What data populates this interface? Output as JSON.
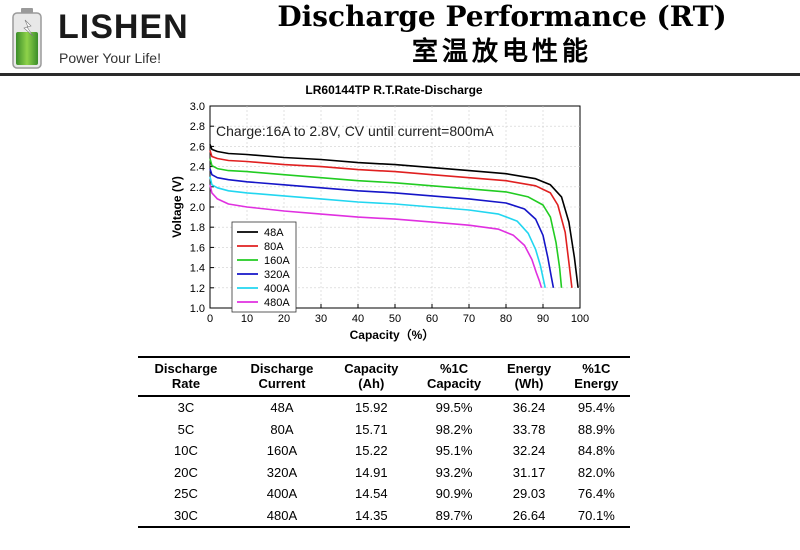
{
  "header": {
    "brand": "LISHEN",
    "slogan": "Power Your Life!",
    "title": "Discharge Performance (RT)",
    "subtitle": "室温放电性能"
  },
  "colors": {
    "48A": "#000000",
    "80A": "#e02020",
    "160A": "#22cc22",
    "320A": "#1515c8",
    "400A": "#22d6f0",
    "480A": "#e030e0"
  },
  "chart_data": {
    "type": "line",
    "title": "LR60144TP R.T.Rate-Discharge",
    "xlabel": "Capacity（%）",
    "ylabel": "Voltage (V)",
    "xlim": [
      0,
      100
    ],
    "ylim": [
      1.0,
      3.0
    ],
    "xticks": [
      "0",
      "10",
      "20",
      "30",
      "40",
      "50",
      "60",
      "70",
      "80",
      "90",
      "100"
    ],
    "yticks": [
      "1.0",
      "1.2",
      "1.4",
      "1.6",
      "1.8",
      "2.0",
      "2.2",
      "2.4",
      "2.6",
      "2.8",
      "3.0"
    ],
    "annotation": "Charge:16A to 2.8V, CV until current=800mA",
    "legend_position": "lower-left",
    "series": [
      {
        "name": "48A",
        "color": "#000000",
        "x": [
          0,
          0.5,
          2,
          5,
          10,
          20,
          30,
          40,
          50,
          60,
          70,
          80,
          88,
          92,
          95,
          97,
          98.5,
          99.5
        ],
        "y": [
          2.62,
          2.57,
          2.55,
          2.53,
          2.52,
          2.49,
          2.47,
          2.44,
          2.42,
          2.39,
          2.36,
          2.33,
          2.28,
          2.22,
          2.1,
          1.85,
          1.5,
          1.2
        ]
      },
      {
        "name": "80A",
        "color": "#e02020",
        "x": [
          0,
          0.5,
          2,
          5,
          10,
          20,
          30,
          40,
          50,
          60,
          70,
          80,
          88,
          92,
          94,
          96,
          97,
          97.8
        ],
        "y": [
          2.56,
          2.5,
          2.48,
          2.46,
          2.45,
          2.42,
          2.4,
          2.37,
          2.35,
          2.32,
          2.29,
          2.26,
          2.21,
          2.14,
          2.02,
          1.75,
          1.45,
          1.2
        ]
      },
      {
        "name": "160A",
        "color": "#22cc22",
        "x": [
          0,
          0.5,
          2,
          5,
          10,
          20,
          30,
          40,
          50,
          60,
          70,
          80,
          86,
          90,
          92,
          93.5,
          94.5,
          95
        ],
        "y": [
          2.48,
          2.41,
          2.38,
          2.36,
          2.35,
          2.32,
          2.29,
          2.26,
          2.24,
          2.21,
          2.18,
          2.15,
          2.1,
          2.02,
          1.9,
          1.65,
          1.4,
          1.2
        ]
      },
      {
        "name": "320A",
        "color": "#1515c8",
        "x": [
          0,
          0.5,
          2,
          5,
          10,
          20,
          30,
          40,
          50,
          60,
          70,
          80,
          85,
          88,
          90,
          91.3,
          92.2,
          92.8
        ],
        "y": [
          2.38,
          2.32,
          2.29,
          2.27,
          2.25,
          2.22,
          2.19,
          2.16,
          2.14,
          2.11,
          2.08,
          2.04,
          1.98,
          1.88,
          1.72,
          1.5,
          1.32,
          1.2
        ]
      },
      {
        "name": "400A",
        "color": "#22d6f0",
        "x": [
          0,
          0.5,
          2,
          5,
          10,
          20,
          30,
          40,
          50,
          60,
          70,
          78,
          83,
          86,
          88,
          89.3,
          90,
          90.6
        ],
        "y": [
          2.3,
          2.22,
          2.19,
          2.16,
          2.14,
          2.11,
          2.08,
          2.05,
          2.03,
          2.0,
          1.97,
          1.93,
          1.86,
          1.74,
          1.58,
          1.42,
          1.3,
          1.2
        ]
      },
      {
        "name": "480A",
        "color": "#e030e0",
        "x": [
          0,
          0.5,
          2,
          5,
          10,
          20,
          30,
          40,
          50,
          60,
          70,
          78,
          82,
          85,
          87,
          88.2,
          89,
          89.6
        ],
        "y": [
          2.22,
          2.14,
          2.08,
          2.03,
          2.0,
          1.96,
          1.93,
          1.9,
          1.88,
          1.85,
          1.82,
          1.78,
          1.72,
          1.62,
          1.48,
          1.35,
          1.27,
          1.2
        ]
      }
    ]
  },
  "table": {
    "headers": [
      [
        "Discharge",
        "Rate"
      ],
      [
        "Discharge",
        "Current"
      ],
      [
        "Capacity",
        "(Ah)"
      ],
      [
        "%1C",
        "Capacity"
      ],
      [
        "Energy",
        "(Wh)"
      ],
      [
        "%1C",
        "Energy"
      ]
    ],
    "rows": [
      [
        "3C",
        "48A",
        "15.92",
        "99.5%",
        "36.24",
        "95.4%"
      ],
      [
        "5C",
        "80A",
        "15.71",
        "98.2%",
        "33.78",
        "88.9%"
      ],
      [
        "10C",
        "160A",
        "15.22",
        "95.1%",
        "32.24",
        "84.8%"
      ],
      [
        "20C",
        "320A",
        "14.91",
        "93.2%",
        "31.17",
        "82.0%"
      ],
      [
        "25C",
        "400A",
        "14.54",
        "90.9%",
        "29.03",
        "76.4%"
      ],
      [
        "30C",
        "480A",
        "14.35",
        "89.7%",
        "26.64",
        "70.1%"
      ]
    ]
  }
}
